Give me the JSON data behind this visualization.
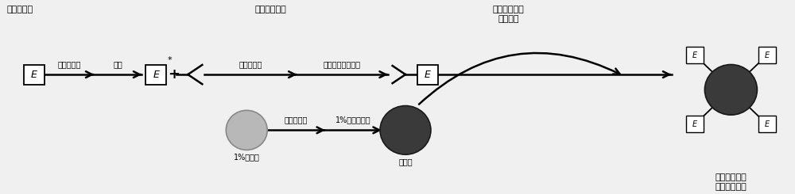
{
  "bg_color": "#f0f0f0",
  "text_color": "#000000",
  "title_left": "碱性磷酸酶",
  "title_mid": "肌红蛋白抗体",
  "title_right_top": "肌红蛋白抗体\n酶标记物",
  "title_final": "肌红蛋白抗体\n酶标记复合物",
  "label_glutaraldehyde": "戊二醛溶液",
  "label_dialysis1": "透析",
  "label_dialysis2": "透析，终止",
  "label_ammonium": "饱和硫酸铵，离心",
  "label_citrate": "1%柠檬酸三钠",
  "label_boil": "加热至沸腾",
  "label_chloroauric": "1%氯化金",
  "label_colloidal_gold": "胶体金",
  "E_label": "E"
}
